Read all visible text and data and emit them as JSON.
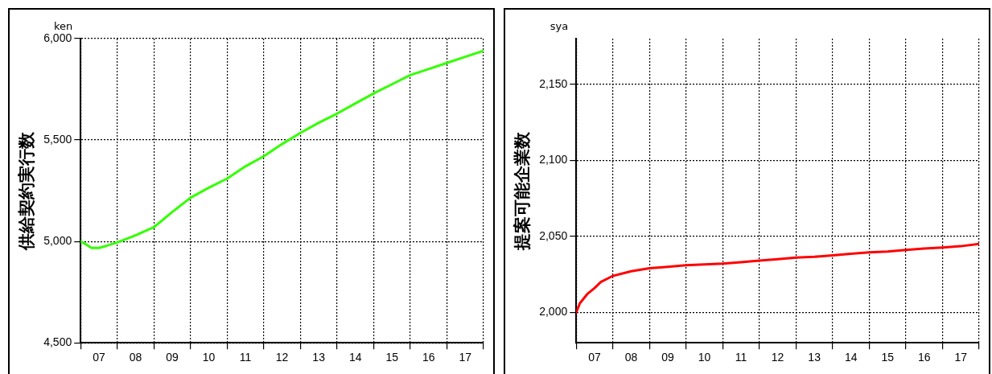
{
  "chart_data": [
    {
      "type": "line",
      "ylabel": "供給契約実行数",
      "annotations": [
        "ken"
      ],
      "color": "#33ff00",
      "marker": "none",
      "line_style": "solid",
      "grid": true,
      "x": [
        6.5,
        6.65,
        6.8,
        7,
        7.2,
        7.5,
        8,
        8.5,
        9,
        9.5,
        10,
        10.5,
        11,
        11.5,
        12,
        12.5,
        13,
        13.5,
        14,
        14.5,
        15,
        15.5,
        16,
        16.5,
        17,
        17.5
      ],
      "values": [
        5000,
        4985,
        4968,
        4968,
        4978,
        4995,
        5030,
        5070,
        5145,
        5215,
        5265,
        5310,
        5370,
        5420,
        5480,
        5535,
        5585,
        5630,
        5680,
        5730,
        5775,
        5820,
        5850,
        5880,
        5910,
        5940
      ],
      "xlim": [
        6.5,
        17.5
      ],
      "xticks": [
        {
          "value": 6.5,
          "label": null
        },
        {
          "value": 7,
          "label": "07"
        },
        {
          "value": 7.5,
          "label": null
        },
        {
          "value": 8,
          "label": "08"
        },
        {
          "value": 8.5,
          "label": null
        },
        {
          "value": 9,
          "label": "09"
        },
        {
          "value": 9.5,
          "label": null
        },
        10,
        {
          "value": 10.5,
          "label": null
        },
        11,
        {
          "value": 11.5,
          "label": null
        },
        12,
        {
          "value": 12.5,
          "label": null
        },
        13,
        {
          "value": 13.5,
          "label": null
        },
        14,
        {
          "value": 14.5,
          "label": null
        },
        15,
        {
          "value": 15.5,
          "label": null
        },
        16,
        {
          "value": 16.5,
          "label": null
        },
        17,
        {
          "value": 17.5,
          "label": null
        }
      ],
      "ylim": [
        4500,
        6000
      ],
      "yticks": [
        {
          "value": 4500,
          "label": "4,500"
        },
        {
          "value": 5000,
          "label": "5,000"
        },
        {
          "value": 5500,
          "label": "5,500"
        },
        {
          "value": 6000,
          "label": "6,000"
        }
      ]
    },
    {
      "type": "line",
      "ylabel": "提案可能企業数",
      "annotations": [
        "sya"
      ],
      "color": "#ff0000",
      "marker": "none",
      "line_style": "solid",
      "grid": true,
      "x": [
        6.5,
        6.6,
        6.8,
        7,
        7.17,
        7.5,
        8,
        8.5,
        9,
        9.5,
        10,
        10.5,
        11,
        11.5,
        12,
        12.5,
        13,
        13.5,
        14,
        14.5,
        15,
        15.5,
        16,
        16.5,
        17,
        17.5
      ],
      "values": [
        2000,
        2006,
        2012,
        2016,
        2020,
        2024,
        2027,
        2029,
        2030,
        2031,
        2031.5,
        2032,
        2033,
        2034,
        2035,
        2036,
        2036.5,
        2037.5,
        2038.5,
        2039.5,
        2040,
        2041,
        2042,
        2042.7,
        2043.5,
        2045
      ],
      "xlim": [
        6.5,
        17.5
      ],
      "xticks": [
        {
          "value": 6.5,
          "label": null
        },
        {
          "value": 7,
          "label": "07"
        },
        {
          "value": 7.5,
          "label": null
        },
        {
          "value": 8,
          "label": "08"
        },
        {
          "value": 8.5,
          "label": null
        },
        {
          "value": 9,
          "label": "09"
        },
        {
          "value": 9.5,
          "label": null
        },
        10,
        {
          "value": 10.5,
          "label": null
        },
        11,
        {
          "value": 11.5,
          "label": null
        },
        12,
        {
          "value": 12.5,
          "label": null
        },
        13,
        {
          "value": 13.5,
          "label": null
        },
        14,
        {
          "value": 14.5,
          "label": null
        },
        15,
        {
          "value": 15.5,
          "label": null
        },
        16,
        {
          "value": 16.5,
          "label": null
        },
        17,
        {
          "value": 17.5,
          "label": null
        }
      ],
      "ylim": [
        1980,
        2180
      ],
      "yticks": [
        {
          "value": 2000,
          "label": "2,000"
        },
        {
          "value": 2050,
          "label": "2,050"
        },
        {
          "value": 2100,
          "label": "2,100"
        },
        {
          "value": 2150,
          "label": "2,150"
        }
      ]
    }
  ]
}
